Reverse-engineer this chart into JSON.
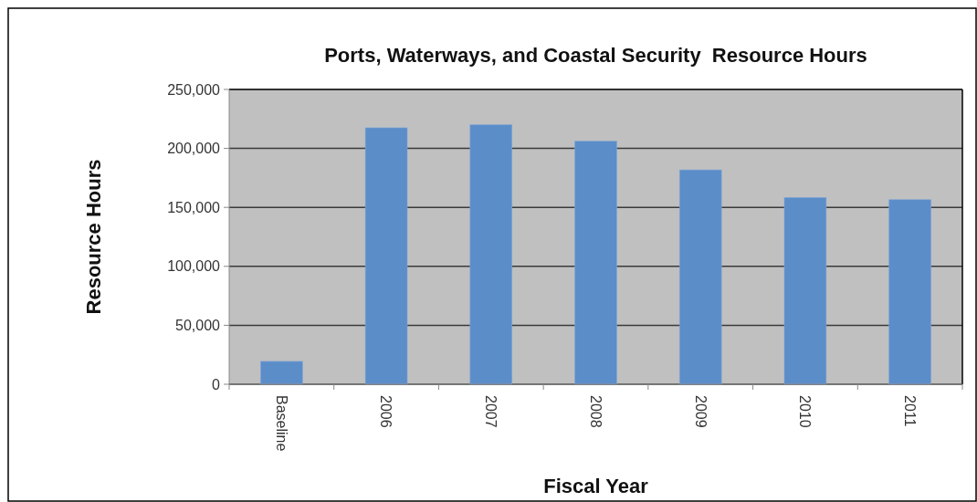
{
  "chart_data": {
    "type": "bar",
    "title": "Ports, Waterways, and Coastal Security  Resource Hours",
    "xlabel": "Fiscal Year",
    "ylabel": "Resource Hours",
    "categories": [
      "Baseline",
      "2006",
      "2007",
      "2008",
      "2009",
      "2010",
      "2011"
    ],
    "values": [
      19400,
      217500,
      220000,
      206100,
      181800,
      158300,
      156500
    ],
    "color": "#5b8dc9",
    "ylim": [
      0,
      250000
    ],
    "yticks": [
      {
        "value": 0,
        "label": "0"
      },
      {
        "value": 50000,
        "label": "50,000"
      },
      {
        "value": 100000,
        "label": "100,000"
      },
      {
        "value": 150000,
        "label": "150,000"
      },
      {
        "value": 200000,
        "label": "200,000"
      },
      {
        "value": 250000,
        "label": "250,000"
      }
    ],
    "grid": "y"
  }
}
